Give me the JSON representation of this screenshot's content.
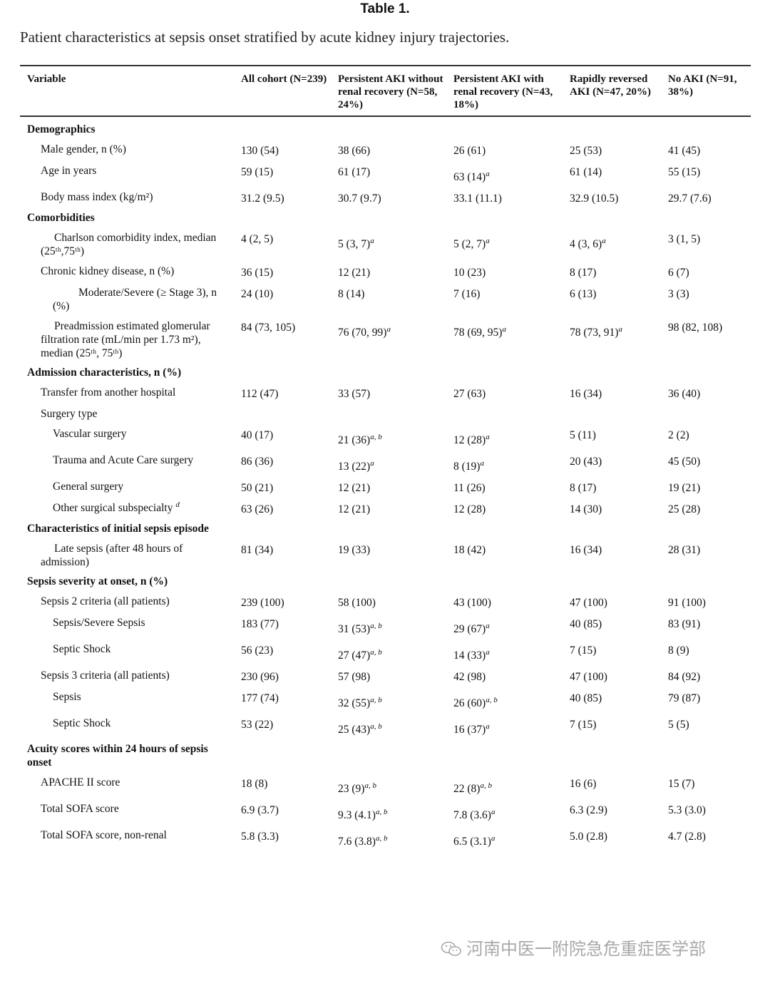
{
  "title": "Table 1.",
  "caption": "Patient characteristics at sepsis onset stratified by acute kidney injury trajectories.",
  "headers": [
    "Variable",
    "All cohort (N=239)",
    "Persistent AKI without renal recovery (N=58, 24%)",
    "Persistent AKI with renal recovery (N=43, 18%)",
    "Rapidly reversed AKI (N=47, 20%)",
    "No AKI (N=91, 38%)"
  ],
  "rows": [
    {
      "type": "section",
      "label": "Demographics"
    },
    {
      "type": "row",
      "indent": 1,
      "label": "Male gender, n (%)",
      "cells": [
        "130 (54)",
        "38 (66)",
        "26 (61)",
        "25 (53)",
        "41 (45)"
      ],
      "sups": [
        "",
        "",
        "",
        "",
        ""
      ]
    },
    {
      "type": "row",
      "indent": 1,
      "label": "Age in years",
      "cells": [
        "59 (15)",
        "61 (17)",
        "63 (14)",
        "61 (14)",
        "55 (15)"
      ],
      "sups": [
        "",
        "",
        "a",
        "",
        ""
      ]
    },
    {
      "type": "row",
      "indent": 1,
      "label": "Body mass index (kg/m²)",
      "cells": [
        "31.2 (9.5)",
        "30.7 (9.7)",
        "33.1 (11.1)",
        "32.9 (10.5)",
        "29.7 (7.6)"
      ],
      "sups": [
        "",
        "",
        "",
        "",
        ""
      ]
    },
    {
      "type": "section",
      "label": "Comorbidities"
    },
    {
      "type": "row",
      "indent": 1,
      "hang": true,
      "label": "Charlson comorbidity index, median (25ᵗʰ,75ᵗʰ)",
      "cells": [
        "4 (2, 5)",
        "5 (3, 7)",
        "5 (2, 7)",
        "4 (3, 6)",
        "3 (1, 5)"
      ],
      "sups": [
        "",
        "a",
        "a",
        "a",
        ""
      ]
    },
    {
      "type": "row",
      "indent": 1,
      "label": "Chronic kidney disease, n (%)",
      "cells": [
        "36 (15)",
        "12 (21)",
        "10 (23)",
        "8 (17)",
        "6 (7)"
      ],
      "sups": [
        "",
        "",
        "",
        "",
        ""
      ]
    },
    {
      "type": "row",
      "indent": 2,
      "hang": true,
      "label": "Moderate/Severe (≥ Stage 3), n (%)",
      "cells": [
        "24 (10)",
        "8 (14)",
        "7 (16)",
        "6 (13)",
        "3 (3)"
      ],
      "sups": [
        "",
        "",
        "",
        "",
        ""
      ]
    },
    {
      "type": "row",
      "indent": 1,
      "hang": true,
      "label": "Preadmission estimated glomerular filtration rate (mL/min per 1.73 m²), median (25ᵗʰ, 75ᵗʰ)",
      "cells": [
        "84 (73, 105)",
        "76 (70, 99)",
        "78 (69, 95)",
        "78 (73, 91)",
        "98 (82, 108)"
      ],
      "sups": [
        "",
        "a",
        "a",
        "a",
        ""
      ]
    },
    {
      "type": "section",
      "label": "Admission characteristics, n (%)"
    },
    {
      "type": "row",
      "indent": 1,
      "label": "Transfer from another hospital",
      "cells": [
        "112 (47)",
        "33 (57)",
        "27 (63)",
        "16 (34)",
        "36 (40)"
      ],
      "sups": [
        "",
        "",
        "",
        "",
        ""
      ]
    },
    {
      "type": "row",
      "indent": 1,
      "label": "Surgery type",
      "cells": [
        "",
        "",
        "",
        "",
        ""
      ],
      "sups": [
        "",
        "",
        "",
        "",
        ""
      ]
    },
    {
      "type": "row",
      "indent": 2,
      "label": "Vascular surgery",
      "cells": [
        "40 (17)",
        "21 (36)",
        "12 (28)",
        "5 (11)",
        "2 (2)"
      ],
      "sups": [
        "",
        "a, b",
        "a",
        "",
        ""
      ]
    },
    {
      "type": "row",
      "indent": 2,
      "label": "Trauma and Acute Care surgery",
      "cells": [
        "86 (36)",
        "13 (22)",
        "8 (19)",
        "20 (43)",
        "45 (50)"
      ],
      "sups": [
        "",
        "a",
        "a",
        "",
        ""
      ]
    },
    {
      "type": "row",
      "indent": 2,
      "label": "General surgery",
      "cells": [
        "50 (21)",
        "12 (21)",
        "11 (26)",
        "8 (17)",
        "19 (21)"
      ],
      "sups": [
        "",
        "",
        "",
        "",
        ""
      ]
    },
    {
      "type": "row",
      "indent": 2,
      "label": "Other surgical subspecialty",
      "labelSup": "d",
      "cells": [
        "63 (26)",
        "12 (21)",
        "12 (28)",
        "14 (30)",
        "25 (28)"
      ],
      "sups": [
        "",
        "",
        "",
        "",
        ""
      ]
    },
    {
      "type": "section",
      "label": "Characteristics of initial sepsis episode"
    },
    {
      "type": "row",
      "indent": 1,
      "hang": true,
      "label": "Late sepsis (after 48 hours of admission)",
      "cells": [
        "81 (34)",
        "19 (33)",
        "18 (42)",
        "16 (34)",
        "28 (31)"
      ],
      "sups": [
        "",
        "",
        "",
        "",
        ""
      ]
    },
    {
      "type": "section",
      "label": "Sepsis severity at onset, n (%)"
    },
    {
      "type": "row",
      "indent": 1,
      "label": "Sepsis 2 criteria (all patients)",
      "cells": [
        "239 (100)",
        "58 (100)",
        "43 (100)",
        "47 (100)",
        "91 (100)"
      ],
      "sups": [
        "",
        "",
        "",
        "",
        ""
      ]
    },
    {
      "type": "row",
      "indent": 2,
      "label": "Sepsis/Severe Sepsis",
      "cells": [
        "183 (77)",
        "31 (53)",
        "29 (67)",
        "40 (85)",
        "83 (91)"
      ],
      "sups": [
        "",
        "a, b",
        "a",
        "",
        ""
      ]
    },
    {
      "type": "row",
      "indent": 2,
      "label": "Septic Shock",
      "cells": [
        "56 (23)",
        "27 (47)",
        "14 (33)",
        "7 (15)",
        "8 (9)"
      ],
      "sups": [
        "",
        "a, b",
        "a",
        "",
        ""
      ]
    },
    {
      "type": "row",
      "indent": 1,
      "label": "Sepsis 3 criteria (all patients)",
      "cells": [
        "230 (96)",
        "57 (98)",
        "42 (98)",
        "47 (100)",
        "84 (92)"
      ],
      "sups": [
        "",
        "",
        "",
        "",
        ""
      ]
    },
    {
      "type": "row",
      "indent": 2,
      "label": "Sepsis",
      "cells": [
        "177 (74)",
        "32 (55)",
        "26 (60)",
        "40 (85)",
        "79 (87)"
      ],
      "sups": [
        "",
        "a, b",
        "a, b",
        "",
        ""
      ]
    },
    {
      "type": "row",
      "indent": 2,
      "label": "Septic Shock",
      "cells": [
        "53 (22)",
        "25 (43)",
        "16 (37)",
        "7 (15)",
        "5 (5)"
      ],
      "sups": [
        "",
        "a, b",
        "a",
        "",
        ""
      ]
    },
    {
      "type": "section",
      "label": "Acuity scores within 24 hours of sepsis onset"
    },
    {
      "type": "row",
      "indent": 1,
      "label": "APACHE II score",
      "cells": [
        "18 (8)",
        "23 (9)",
        "22 (8)",
        "16 (6)",
        "15 (7)"
      ],
      "sups": [
        "",
        "a, b",
        "a, b",
        "",
        ""
      ]
    },
    {
      "type": "row",
      "indent": 1,
      "label": "Total SOFA score",
      "cells": [
        "6.9 (3.7)",
        "9.3 (4.1)",
        "7.8 (3.6)",
        "6.3 (2.9)",
        "5.3 (3.0)"
      ],
      "sups": [
        "",
        "a, b",
        "a",
        "",
        ""
      ]
    },
    {
      "type": "row",
      "indent": 1,
      "label": "Total SOFA score, non-renal",
      "cells": [
        "5.8 (3.3)",
        "7.6 (3.8)",
        "6.5 (3.1)",
        "5.0 (2.8)",
        "4.7 (2.8)"
      ],
      "sups": [
        "",
        "a, b",
        "a",
        "",
        ""
      ]
    }
  ],
  "watermark": "河南中医一附院急危重症医学部"
}
